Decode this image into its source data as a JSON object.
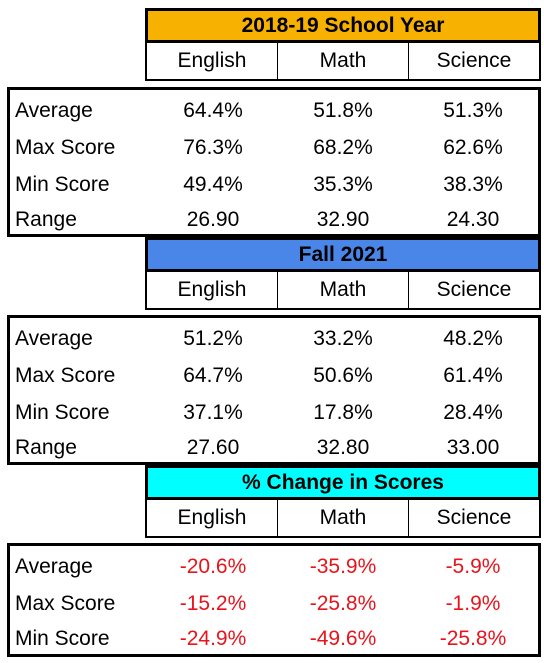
{
  "sections": [
    {
      "title": "2018-19 School Year",
      "header_color": "#f7b100",
      "columns": [
        "English",
        "Math",
        "Science"
      ],
      "rows": [
        {
          "label": "Average",
          "values": [
            "64.4%",
            "51.8%",
            "51.3%"
          ]
        },
        {
          "label": "Max Score",
          "values": [
            "76.3%",
            "68.2%",
            "62.6%"
          ]
        },
        {
          "label": "Min Score",
          "values": [
            "49.4%",
            "35.3%",
            "38.3%"
          ]
        },
        {
          "label": "Range",
          "values": [
            "26.90",
            "32.90",
            "24.30"
          ]
        }
      ]
    },
    {
      "title": "Fall 2021",
      "header_color": "#4a86e8",
      "columns": [
        "English",
        "Math",
        "Science"
      ],
      "rows": [
        {
          "label": "Average",
          "values": [
            "51.2%",
            "33.2%",
            "48.2%"
          ]
        },
        {
          "label": "Max Score",
          "values": [
            "64.7%",
            "50.6%",
            "61.4%"
          ]
        },
        {
          "label": "Min Score",
          "values": [
            "37.1%",
            "17.8%",
            "28.4%"
          ]
        },
        {
          "label": "Range",
          "values": [
            "27.60",
            "32.80",
            "33.00"
          ]
        }
      ]
    },
    {
      "title": "% Change in Scores",
      "header_color": "#00ffff",
      "value_color": "#e8141b",
      "columns": [
        "English",
        "Math",
        "Science"
      ],
      "rows": [
        {
          "label": "Average",
          "values": [
            "-20.6%",
            "-35.9%",
            "-5.9%"
          ]
        },
        {
          "label": "Max Score",
          "values": [
            "-15.2%",
            "-25.8%",
            "-1.9%"
          ]
        },
        {
          "label": "Min Score",
          "values": [
            "-24.9%",
            "-49.6%",
            "-25.8%"
          ]
        }
      ]
    }
  ]
}
